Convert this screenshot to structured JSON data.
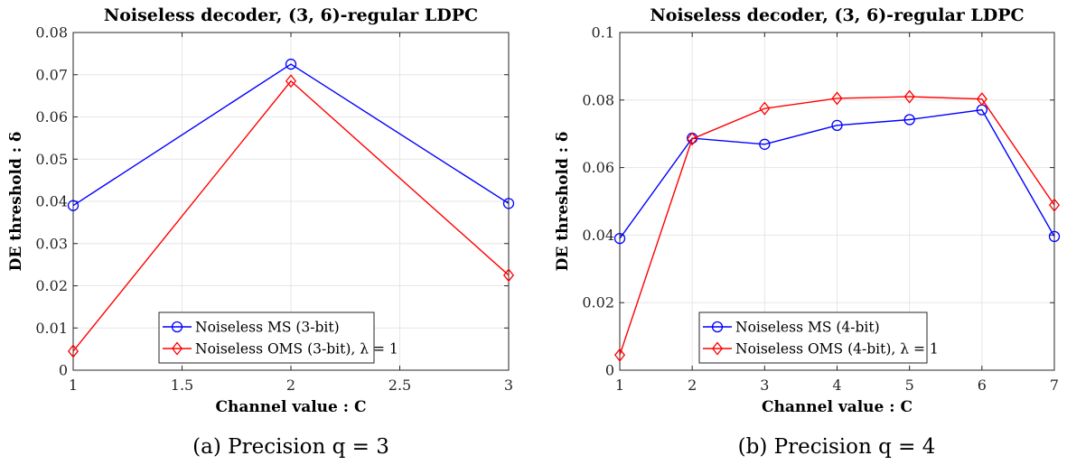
{
  "chart_data": [
    {
      "type": "line",
      "title": "Noiseless decoder, (3, 6)-regular LDPC",
      "xlabel": "Channel value : C",
      "ylabel": "DE threshold : δ",
      "xlim": [
        1,
        3
      ],
      "ylim": [
        0,
        0.08
      ],
      "xticks": [
        "1",
        "1.5",
        "2",
        "2.5",
        "3"
      ],
      "yticks": [
        "0",
        "0.01",
        "0.02",
        "0.03",
        "0.04",
        "0.05",
        "0.06",
        "0.07",
        "0.08"
      ],
      "grid": true,
      "legend_position": "bottom-center",
      "x": [
        1,
        2,
        3
      ],
      "series": [
        {
          "name": "Noiseless MS (3-bit)",
          "color": "#0000ff",
          "marker": "circle",
          "values": [
            0.039,
            0.0725,
            0.0395
          ]
        },
        {
          "name": "Noiseless OMS (3-bit), λ = 1",
          "color": "#ff0000",
          "marker": "diamond",
          "values": [
            0.0045,
            0.0685,
            0.0225
          ]
        }
      ],
      "caption": "(a) Precision q = 3"
    },
    {
      "type": "line",
      "title": "Noiseless decoder, (3, 6)-regular LDPC",
      "xlabel": "Channel value : C",
      "ylabel": "DE threshold : δ",
      "xlim": [
        1,
        7
      ],
      "ylim": [
        0,
        0.1
      ],
      "xticks": [
        "1",
        "2",
        "3",
        "4",
        "5",
        "6",
        "7"
      ],
      "yticks": [
        "0",
        "0.02",
        "0.04",
        "0.06",
        "0.08",
        "0.1"
      ],
      "grid": true,
      "legend_position": "bottom-center",
      "x": [
        1,
        2,
        3,
        4,
        5,
        6,
        7
      ],
      "series": [
        {
          "name": "Noiseless MS (4-bit)",
          "color": "#0000ff",
          "marker": "circle",
          "values": [
            0.039,
            0.0687,
            0.0669,
            0.0725,
            0.0742,
            0.0771,
            0.0396
          ]
        },
        {
          "name": "Noiseless OMS (4-bit), λ = 1",
          "color": "#ff0000",
          "marker": "diamond",
          "values": [
            0.0045,
            0.0685,
            0.0775,
            0.0805,
            0.081,
            0.0803,
            0.0489
          ]
        }
      ],
      "caption": "(b) Precision q = 4"
    }
  ]
}
